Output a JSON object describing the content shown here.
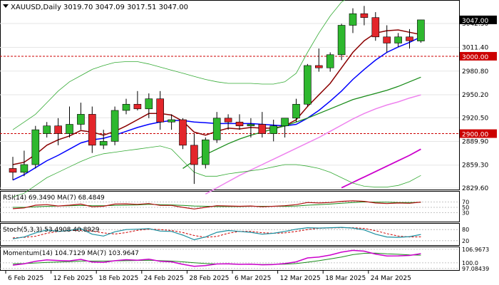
{
  "header": {
    "symbol": "XAUUSD,Daily",
    "ohlc": "3019.70 3047.09 3017.51 3047.00"
  },
  "price_panel": {
    "y_ticks": [
      "3042.30",
      "3011.40",
      "2980.80",
      "2950.20",
      "2920.50",
      "2889.90",
      "2859.30",
      "2829.60"
    ],
    "y_tick_values": [
      3042.3,
      3011.4,
      2980.8,
      2950.2,
      2920.5,
      2889.9,
      2859.3,
      2829.6
    ],
    "price_min": 2829.6,
    "price_max": 3042.3,
    "labels": [
      {
        "text": "3047.00",
        "value": 3047.0,
        "kind": "last-price"
      },
      {
        "text": "3000.00",
        "value": 3000.0,
        "kind": "level"
      },
      {
        "text": "2900.00",
        "value": 2900.0,
        "kind": "level"
      }
    ],
    "levels": [
      3000.0,
      2900.0
    ]
  },
  "rsi_panel": {
    "label": "RSI(14) 69.3490   MA(7) 68.4849",
    "ticks": [
      "70",
      "50",
      "30"
    ],
    "rsi_value": 69.349,
    "ma_value": 68.4849
  },
  "stoch_panel": {
    "label": "Stoch(5,3,3) 53.4908 40.8929",
    "ticks": [
      "80",
      "20"
    ],
    "k_value": 53.4908,
    "d_value": 40.8929
  },
  "momentum_panel": {
    "label": "Momentum(14) 104.7129   MA(7) 103.9647",
    "ticks": [
      "106.9673",
      "100.0",
      "97.08439"
    ],
    "value": 104.7129,
    "ma_value": 103.9647
  },
  "x_axis": {
    "labels": [
      "6 Feb 2025",
      "12 Feb 2025",
      "18 Feb 2025",
      "24 Feb 2025",
      "28 Feb 2025",
      "6 Mar 2025",
      "12 Mar 2025",
      "18 Mar 2025",
      "24 Mar 2025"
    ]
  },
  "colors": {
    "bull": "#2eb82e",
    "bear": "#e3262b",
    "ma_fast": "#8b0000",
    "ma_mid": "#0000ff",
    "ma_slow": "#1a8c1a",
    "ma_long": "#ee82ee",
    "ma_longest": "#cc00cc",
    "bollinger": "#33aa33",
    "level": "#cc0000"
  },
  "chart_data": {
    "type": "candlestick",
    "title": "XAUUSD,Daily",
    "candles": [
      {
        "o": 2855,
        "h": 2870,
        "l": 2840,
        "c": 2850
      },
      {
        "o": 2850,
        "h": 2878,
        "l": 2845,
        "c": 2860
      },
      {
        "o": 2860,
        "h": 2910,
        "l": 2855,
        "c": 2905
      },
      {
        "o": 2900,
        "h": 2915,
        "l": 2895,
        "c": 2910
      },
      {
        "o": 2910,
        "h": 2920,
        "l": 2885,
        "c": 2900
      },
      {
        "o": 2900,
        "h": 2935,
        "l": 2895,
        "c": 2912
      },
      {
        "o": 2912,
        "h": 2940,
        "l": 2905,
        "c": 2925
      },
      {
        "o": 2925,
        "h": 2935,
        "l": 2875,
        "c": 2885
      },
      {
        "o": 2885,
        "h": 2905,
        "l": 2880,
        "c": 2890
      },
      {
        "o": 2890,
        "h": 2935,
        "l": 2885,
        "c": 2930
      },
      {
        "o": 2930,
        "h": 2945,
        "l": 2925,
        "c": 2938
      },
      {
        "o": 2938,
        "h": 2955,
        "l": 2930,
        "c": 2932
      },
      {
        "o": 2932,
        "h": 2952,
        "l": 2920,
        "c": 2945
      },
      {
        "o": 2945,
        "h": 2955,
        "l": 2905,
        "c": 2915
      },
      {
        "o": 2915,
        "h": 2925,
        "l": 2905,
        "c": 2918
      },
      {
        "o": 2918,
        "h": 2920,
        "l": 2880,
        "c": 2885
      },
      {
        "o": 2885,
        "h": 2900,
        "l": 2835,
        "c": 2860
      },
      {
        "o": 2860,
        "h": 2895,
        "l": 2855,
        "c": 2892
      },
      {
        "o": 2892,
        "h": 2928,
        "l": 2888,
        "c": 2920
      },
      {
        "o": 2920,
        "h": 2925,
        "l": 2905,
        "c": 2915
      },
      {
        "o": 2915,
        "h": 2925,
        "l": 2905,
        "c": 2910
      },
      {
        "o": 2910,
        "h": 2920,
        "l": 2895,
        "c": 2912
      },
      {
        "o": 2912,
        "h": 2928,
        "l": 2895,
        "c": 2900
      },
      {
        "o": 2900,
        "h": 2918,
        "l": 2890,
        "c": 2910
      },
      {
        "o": 2910,
        "h": 2920,
        "l": 2895,
        "c": 2920
      },
      {
        "o": 2920,
        "h": 2945,
        "l": 2915,
        "c": 2938
      },
      {
        "o": 2938,
        "h": 2990,
        "l": 2935,
        "c": 2988
      },
      {
        "o": 2988,
        "h": 3010,
        "l": 2980,
        "c": 2985
      },
      {
        "o": 2985,
        "h": 3005,
        "l": 2980,
        "c": 3002
      },
      {
        "o": 3002,
        "h": 3042,
        "l": 2995,
        "c": 3040
      },
      {
        "o": 3040,
        "h": 3062,
        "l": 3030,
        "c": 3055
      },
      {
        "o": 3055,
        "h": 3065,
        "l": 3040,
        "c": 3050
      },
      {
        "o": 3050,
        "h": 3057,
        "l": 3020,
        "c": 3025
      },
      {
        "o": 3025,
        "h": 3040,
        "l": 3005,
        "c": 3017
      },
      {
        "o": 3017,
        "h": 3030,
        "l": 3012,
        "c": 3025
      },
      {
        "o": 3025,
        "h": 3035,
        "l": 3010,
        "c": 3020
      },
      {
        "o": 3019.7,
        "h": 3047.09,
        "l": 3017.51,
        "c": 3047.0
      }
    ],
    "series": [
      {
        "kind": "ma_fast",
        "values": [
          2860,
          2863,
          2873,
          2885,
          2892,
          2897,
          2904,
          2902,
          2898,
          2903,
          2910,
          2918,
          2926,
          2926,
          2924,
          2916,
          2902,
          2898,
          2903,
          2907,
          2906,
          2908,
          2907,
          2907,
          2910,
          2918,
          2935,
          2950,
          2965,
          2985,
          3005,
          3020,
          3030,
          3033,
          3034,
          3031,
          3028
        ]
      },
      {
        "kind": "ma_mid",
        "values": [
          2840,
          2847,
          2856,
          2865,
          2872,
          2880,
          2888,
          2892,
          2894,
          2898,
          2903,
          2908,
          2912,
          2915,
          2917,
          2917,
          2915,
          2914,
          2913,
          2913,
          2913,
          2913,
          2912,
          2911,
          2910,
          2912,
          2920,
          2930,
          2942,
          2955,
          2970,
          2983,
          2995,
          3005,
          3012,
          3018,
          3025
        ]
      },
      {
        "kind": "ma_slow",
        "values": [
          null,
          null,
          null,
          null,
          null,
          null,
          null,
          null,
          null,
          null,
          null,
          null,
          null,
          null,
          null,
          2855,
          2865,
          2873,
          2880,
          2887,
          2893,
          2898,
          2902,
          2906,
          2910,
          2915,
          2920,
          2926,
          2932,
          2938,
          2944,
          2948,
          2952,
          2956,
          2961,
          2967,
          2973
        ]
      },
      {
        "kind": "ma_long",
        "values": [
          null,
          null,
          null,
          null,
          null,
          null,
          null,
          null,
          null,
          null,
          null,
          null,
          null,
          null,
          null,
          null,
          null,
          2822,
          2830,
          2838,
          2846,
          2853,
          2860,
          2867,
          2874,
          2881,
          2888,
          2895,
          2903,
          2911,
          2919,
          2926,
          2932,
          2937,
          2941,
          2946,
          2950
        ]
      },
      {
        "kind": "ma_longest",
        "values": [
          null,
          null,
          null,
          null,
          null,
          null,
          null,
          null,
          null,
          null,
          null,
          null,
          null,
          null,
          null,
          null,
          null,
          null,
          null,
          null,
          null,
          null,
          null,
          null,
          null,
          null,
          null,
          null,
          null,
          2830,
          2837,
          2844,
          2851,
          2858,
          2865,
          2872,
          2880
        ]
      },
      {
        "kind": "bollinger_upper",
        "values": [
          2905,
          2915,
          2925,
          2940,
          2955,
          2967,
          2975,
          2983,
          2988,
          2992,
          2993,
          2993,
          2990,
          2986,
          2982,
          2978,
          2974,
          2970,
          2967,
          2965,
          2965,
          2965,
          2964,
          2964,
          2967,
          2978,
          3005,
          3030,
          3052,
          3070,
          3080,
          3087,
          3090,
          3088,
          3087,
          3086,
          3085
        ]
      },
      {
        "kind": "bollinger_lower",
        "values": [
          2818,
          2823,
          2833,
          2843,
          2850,
          2857,
          2864,
          2870,
          2874,
          2876,
          2878,
          2880,
          2882,
          2884,
          2880,
          2865,
          2850,
          2845,
          2845,
          2848,
          2850,
          2852,
          2854,
          2857,
          2860,
          2860,
          2858,
          2855,
          2850,
          2843,
          2836,
          2832,
          2831,
          2831,
          2833,
          2838,
          2846
        ]
      }
    ],
    "rsi": [
      45,
      48,
      58,
      60,
      55,
      58,
      62,
      52,
      54,
      62,
      63,
      61,
      64,
      57,
      57,
      50,
      44,
      50,
      56,
      55,
      54,
      55,
      52,
      54,
      56,
      60,
      68,
      66,
      68,
      72,
      74,
      72,
      66,
      64,
      66,
      65,
      69.349
    ],
    "rsi_ma": [
      50,
      50,
      52,
      54,
      55,
      56,
      57,
      56,
      56,
      57,
      58,
      59,
      61,
      60,
      59,
      57,
      55,
      54,
      53,
      53,
      53,
      54,
      54,
      54,
      54,
      55,
      58,
      60,
      62,
      65,
      68,
      70,
      69,
      69,
      68,
      68,
      68.4849
    ],
    "stoch_k": [
      30,
      40,
      62,
      78,
      70,
      75,
      85,
      55,
      45,
      68,
      80,
      82,
      85,
      72,
      70,
      50,
      25,
      40,
      65,
      75,
      70,
      65,
      55,
      60,
      70,
      82,
      90,
      88,
      90,
      92,
      88,
      78,
      55,
      40,
      38,
      42,
      53.4908
    ],
    "stoch_d": [
      35,
      38,
      44,
      60,
      70,
      74,
      77,
      72,
      62,
      56,
      64,
      76,
      82,
      80,
      75,
      64,
      48,
      38,
      43,
      60,
      70,
      70,
      63,
      60,
      62,
      70,
      80,
      87,
      89,
      90,
      90,
      86,
      74,
      58,
      45,
      40,
      40.8929
    ],
    "momentum": [
      98.8,
      99.5,
      100.8,
      101.5,
      101.2,
      101.0,
      101.8,
      100.4,
      100.2,
      101.1,
      101.6,
      101.3,
      101.9,
      100.8,
      100.5,
      99.2,
      98.2,
      98.6,
      99.4,
      99.5,
      99.2,
      99.3,
      99.0,
      99.1,
      99.6,
      100.5,
      102.5,
      103.0,
      104.0,
      105.5,
      106.4,
      106.0,
      104.5,
      103.5,
      103.6,
      103.8,
      104.7129
    ],
    "momentum_ma": [
      99.5,
      99.6,
      99.9,
      100.2,
      100.4,
      100.6,
      100.9,
      100.9,
      100.9,
      101.0,
      101.1,
      101.2,
      101.3,
      101.1,
      100.9,
      100.5,
      100.0,
      99.6,
      99.4,
      99.4,
      99.2,
      99.2,
      99.1,
      99.2,
      99.3,
      99.6,
      100.3,
      101.1,
      102.0,
      103.0,
      104.2,
      104.9,
      105.0,
      104.6,
      104.4,
      104.1,
      103.9647
    ]
  }
}
